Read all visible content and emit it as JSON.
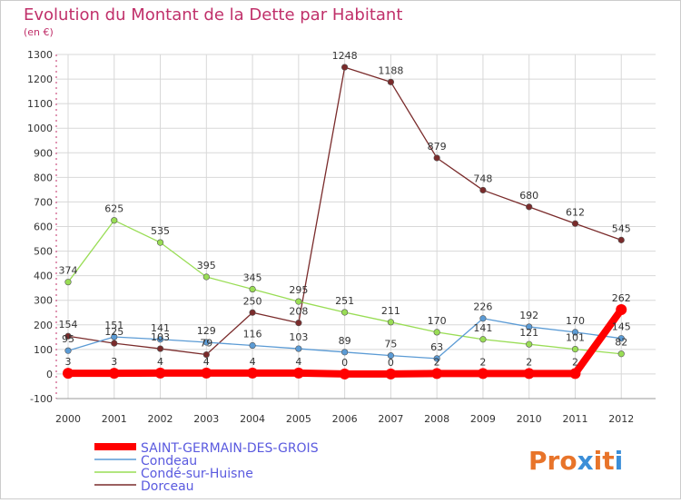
{
  "title": "Evolution du Montant de la Dette par Habitant",
  "subtitle": "(en €)",
  "brand": "Proxiti",
  "colors": {
    "title": "#c0306a",
    "axis_tick": "#c0306a",
    "grid": "#d8d8d8",
    "label_text": "#333333",
    "legend_text": "#5a5adf",
    "brand_letters": [
      "#e8742a",
      "#e8742a",
      "#e8742a",
      "#3a8ed8",
      "#e8742a",
      "#e8742a",
      "#3a8ed8"
    ]
  },
  "chart_data": {
    "type": "line",
    "title": "Evolution du Montant de la Dette par Habitant",
    "subtitle": "(en €)",
    "xlabel": "",
    "ylabel": "",
    "ylim": [
      -100,
      1300
    ],
    "yticks": [
      -100,
      0,
      100,
      200,
      300,
      400,
      500,
      600,
      700,
      800,
      900,
      1000,
      1100,
      1200,
      1300
    ],
    "grid": true,
    "legend_position": "bottom-left",
    "x": [
      "2000",
      "2001",
      "2002",
      "2003",
      "2004",
      "2005",
      "2006",
      "2007",
      "2008",
      "2009",
      "2010",
      "2011",
      "2012"
    ],
    "series": [
      {
        "name": "SAINT-GERMAIN-DES-GROIS",
        "color": "#ff0000",
        "values": [
          3,
          3,
          4,
          4,
          4,
          4,
          0,
          0,
          2,
          2,
          2,
          2,
          262
        ]
      },
      {
        "name": "Condeau",
        "color": "#5b9bd5",
        "values": [
          95,
          151,
          141,
          129,
          116,
          103,
          89,
          75,
          63,
          226,
          192,
          170,
          145
        ]
      },
      {
        "name": "Condé-sur-Huisne",
        "color": "#99dd55",
        "values": [
          374,
          625,
          535,
          395,
          345,
          295,
          251,
          211,
          170,
          141,
          121,
          101,
          82
        ]
      },
      {
        "name": "Dorceau",
        "color": "#7a2b2b",
        "values": [
          154,
          125,
          103,
          79,
          250,
          208,
          1248,
          1188,
          879,
          748,
          680,
          612,
          545
        ]
      }
    ]
  }
}
